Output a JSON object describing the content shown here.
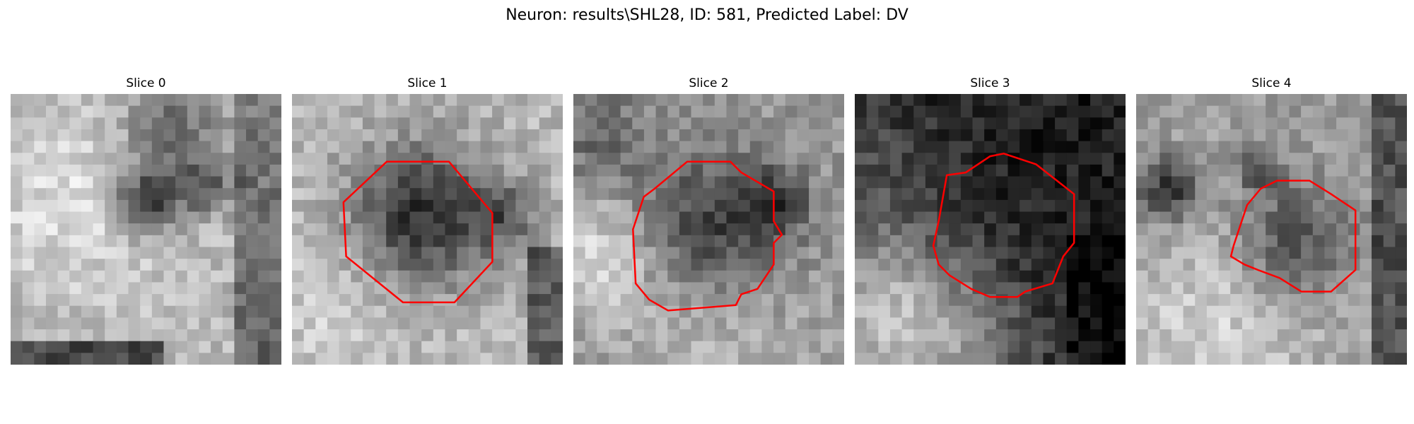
{
  "figure": {
    "title": "Neuron: results\\SHL28, ID: 581, Predicted Label: DV"
  },
  "colors": {
    "contour": "#ff0000",
    "background": "#ffffff"
  },
  "panels": [
    {
      "title": "Slice 0",
      "has_contour": false,
      "seed": 11,
      "mean_brightness": 0.62
    },
    {
      "title": "Slice 1",
      "has_contour": true,
      "seed": 23,
      "mean_brightness": 0.66
    },
    {
      "title": "Slice 2",
      "has_contour": true,
      "seed": 37,
      "mean_brightness": 0.52
    },
    {
      "title": "Slice 3",
      "has_contour": true,
      "seed": 41,
      "mean_brightness": 0.12
    },
    {
      "title": "Slice 4",
      "has_contour": true,
      "seed": 53,
      "mean_brightness": 0.55
    }
  ]
}
